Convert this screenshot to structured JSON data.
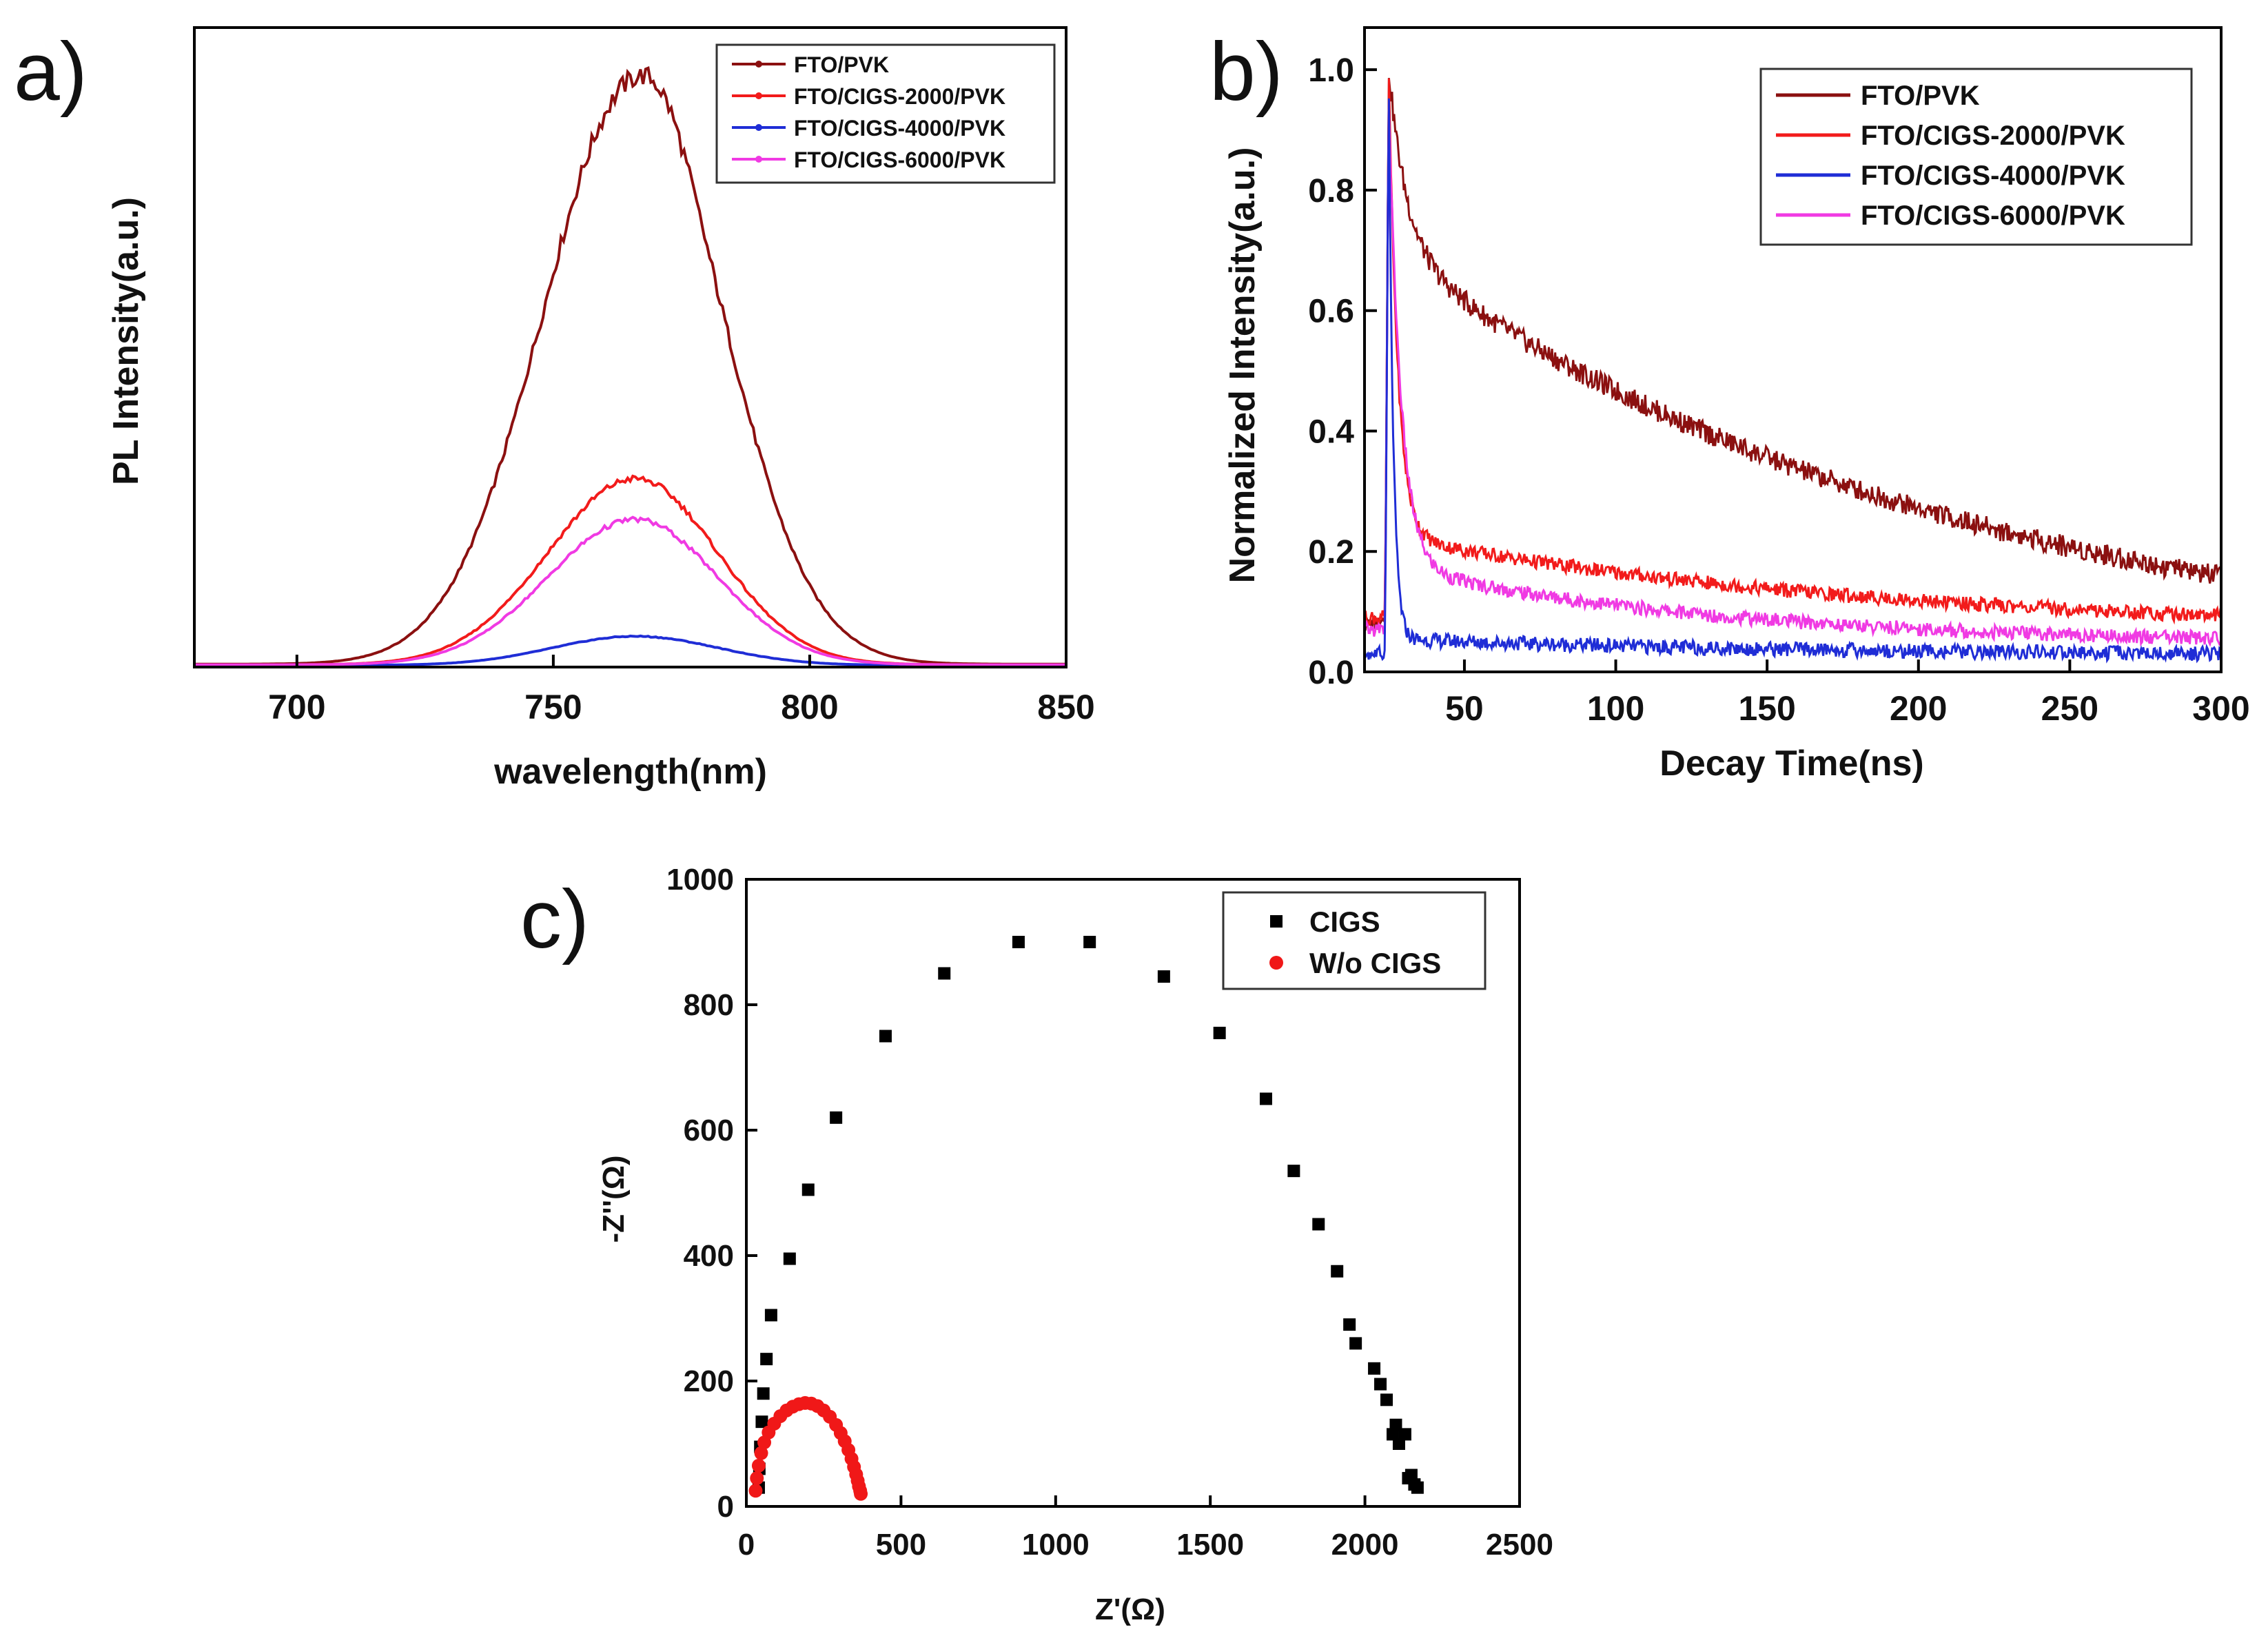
{
  "chart_data": [
    {
      "panel": "a)",
      "type": "line",
      "title": "",
      "xlabel": "wavelength(nm)",
      "ylabel": "PL Intensity(a.u.)",
      "xlim": [
        680,
        850
      ],
      "ylim": [
        0,
        1.1
      ],
      "xticks": [
        700,
        750,
        800,
        850
      ],
      "yticks_shown": false,
      "legend": "top-right",
      "series": [
        {
          "name": "FTO/PVK",
          "color": "#8B1010",
          "marker": "dot",
          "peak": 1.0,
          "center": 766,
          "sigma_left": 18,
          "sigma_right": 17,
          "baseline": 0.005
        },
        {
          "name": "FTO/CIGS-2000/PVK",
          "color": "#F21B1B",
          "marker": "dot",
          "peak": 0.32,
          "center": 766,
          "sigma_left": 17,
          "sigma_right": 16,
          "baseline": 0.004
        },
        {
          "name": "FTO/CIGS-4000/PVK",
          "color": "#1F2DD6",
          "marker": "dot",
          "peak": 0.05,
          "center": 766,
          "sigma_left": 16,
          "sigma_right": 16,
          "baseline": 0.003
        },
        {
          "name": "FTO/CIGS-6000/PVK",
          "color": "#F03AE3",
          "marker": "dot",
          "peak": 0.25,
          "center": 766,
          "sigma_left": 17,
          "sigma_right": 16,
          "baseline": 0.004
        }
      ]
    },
    {
      "panel": "b)",
      "type": "line",
      "title": "",
      "xlabel": "Decay Time(ns)",
      "ylabel": "Normalized Intensity(a.u.)",
      "xlim": [
        17,
        300
      ],
      "ylim": [
        0.0,
        1.07
      ],
      "xticks": [
        50,
        100,
        150,
        200,
        250,
        300
      ],
      "yticks": [
        0.0,
        0.2,
        0.4,
        0.6,
        0.8,
        1.0
      ],
      "ytick_labels": [
        "0.0",
        "0.2",
        "0.4",
        "0.6",
        "0.8",
        "1.0"
      ],
      "legend": "top-right",
      "series": [
        {
          "name": "FTO/PVK",
          "color": "#8B1010",
          "pre_peak": 0.08,
          "peak_time": 25,
          "a1": 0.3,
          "tau1": 6,
          "a2": 0.7,
          "tau2": 185,
          "floor": 0.0
        },
        {
          "name": "FTO/CIGS-2000/PVK",
          "color": "#F21B1B",
          "pre_peak": 0.09,
          "peak_time": 25,
          "a1": 0.84,
          "tau1": 3,
          "a2": 0.16,
          "tau2": 160,
          "floor": 0.065
        },
        {
          "name": "FTO/CIGS-4000/PVK",
          "color": "#1F2DD6",
          "pre_peak": 0.03,
          "peak_time": 25,
          "a1": 0.95,
          "tau1": 1.5,
          "a2": 0.03,
          "tau2": 150,
          "floor": 0.025
        },
        {
          "name": "FTO/CIGS-6000/PVK",
          "color": "#F03AE3",
          "pre_peak": 0.07,
          "peak_time": 25,
          "a1": 0.82,
          "tau1": 4,
          "a2": 0.13,
          "tau2": 110,
          "floor": 0.045
        }
      ]
    },
    {
      "panel": "c)",
      "type": "scatter",
      "title": "",
      "xlabel": "Z'(Ω)",
      "ylabel": "-Z''(Ω)",
      "xlim": [
        0,
        2500
      ],
      "ylim": [
        0,
        1000
      ],
      "xticks": [
        0,
        500,
        1000,
        1500,
        2000,
        2500
      ],
      "yticks": [
        0,
        200,
        400,
        600,
        800,
        1000
      ],
      "legend": "top-right",
      "series": [
        {
          "name": "CIGS",
          "color": "#000000",
          "marker": "square",
          "x": [
            40,
            42,
            45,
            50,
            55,
            65,
            80,
            140,
            200,
            290,
            450,
            640,
            880,
            1110,
            1350,
            1530,
            1680,
            1770,
            1850,
            1910,
            1950,
            1970,
            2030,
            2050,
            2070,
            2090,
            2100,
            2110,
            2130,
            2140,
            2150,
            2160,
            2170
          ],
          "y": [
            30,
            60,
            95,
            135,
            180,
            235,
            305,
            395,
            505,
            620,
            750,
            850,
            900,
            900,
            845,
            755,
            650,
            535,
            450,
            375,
            290,
            260,
            220,
            195,
            170,
            115,
            130,
            100,
            115,
            45,
            50,
            35,
            30
          ]
        },
        {
          "name": "W/o CIGS",
          "color": "#F01818",
          "marker": "circle",
          "x": [
            30,
            34,
            40,
            48,
            58,
            72,
            90,
            110,
            130,
            150,
            170,
            190,
            210,
            230,
            250,
            270,
            290,
            305,
            318,
            330,
            340,
            348,
            355,
            360,
            364,
            368,
            370
          ],
          "y": [
            25,
            45,
            65,
            85,
            102,
            118,
            132,
            144,
            153,
            159,
            163,
            165,
            164,
            160,
            153,
            143,
            130,
            117,
            104,
            90,
            76,
            63,
            51,
            41,
            32,
            25,
            20
          ]
        }
      ]
    }
  ]
}
